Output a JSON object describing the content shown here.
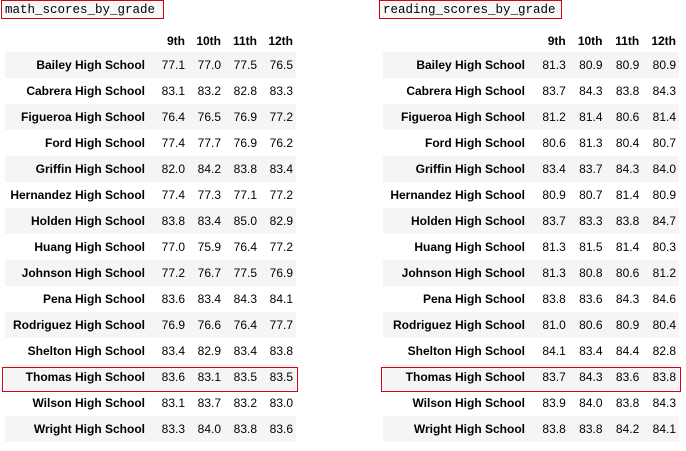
{
  "math": {
    "title": "math_scores_by_grade",
    "columns": [
      "",
      "9th",
      "10th",
      "11th",
      "12th"
    ],
    "rows": [
      {
        "school": "Bailey High School",
        "v": [
          "77.1",
          "77.0",
          "77.5",
          "76.5"
        ]
      },
      {
        "school": "Cabrera High School",
        "v": [
          "83.1",
          "83.2",
          "82.8",
          "83.3"
        ]
      },
      {
        "school": "Figueroa High School",
        "v": [
          "76.4",
          "76.5",
          "76.9",
          "77.2"
        ]
      },
      {
        "school": "Ford High School",
        "v": [
          "77.4",
          "77.7",
          "76.9",
          "76.2"
        ]
      },
      {
        "school": "Griffin High School",
        "v": [
          "82.0",
          "84.2",
          "83.8",
          "83.4"
        ]
      },
      {
        "school": "Hernandez High School",
        "v": [
          "77.4",
          "77.3",
          "77.1",
          "77.2"
        ]
      },
      {
        "school": "Holden High School",
        "v": [
          "83.8",
          "83.4",
          "85.0",
          "82.9"
        ]
      },
      {
        "school": "Huang High School",
        "v": [
          "77.0",
          "75.9",
          "76.4",
          "77.2"
        ]
      },
      {
        "school": "Johnson High School",
        "v": [
          "77.2",
          "76.7",
          "77.5",
          "76.9"
        ]
      },
      {
        "school": "Pena High School",
        "v": [
          "83.6",
          "83.4",
          "84.3",
          "84.1"
        ]
      },
      {
        "school": "Rodriguez High School",
        "v": [
          "76.9",
          "76.6",
          "76.4",
          "77.7"
        ]
      },
      {
        "school": "Shelton High School",
        "v": [
          "83.4",
          "82.9",
          "83.4",
          "83.8"
        ]
      },
      {
        "school": "Thomas High School",
        "v": [
          "83.6",
          "83.1",
          "83.5",
          "83.5"
        ]
      },
      {
        "school": "Wilson High School",
        "v": [
          "83.1",
          "83.7",
          "83.2",
          "83.0"
        ]
      },
      {
        "school": "Wright High School",
        "v": [
          "83.3",
          "84.0",
          "83.8",
          "83.6"
        ]
      }
    ]
  },
  "reading": {
    "title": "reading_scores_by_grade",
    "columns": [
      "",
      "9th",
      "10th",
      "11th",
      "12th"
    ],
    "rows": [
      {
        "school": "Bailey High School",
        "v": [
          "81.3",
          "80.9",
          "80.9",
          "80.9"
        ]
      },
      {
        "school": "Cabrera High School",
        "v": [
          "83.7",
          "84.3",
          "83.8",
          "84.3"
        ]
      },
      {
        "school": "Figueroa High School",
        "v": [
          "81.2",
          "81.4",
          "80.6",
          "81.4"
        ]
      },
      {
        "school": "Ford High School",
        "v": [
          "80.6",
          "81.3",
          "80.4",
          "80.7"
        ]
      },
      {
        "school": "Griffin High School",
        "v": [
          "83.4",
          "83.7",
          "84.3",
          "84.0"
        ]
      },
      {
        "school": "Hernandez High School",
        "v": [
          "80.9",
          "80.7",
          "81.4",
          "80.9"
        ]
      },
      {
        "school": "Holden High School",
        "v": [
          "83.7",
          "83.3",
          "83.8",
          "84.7"
        ]
      },
      {
        "school": "Huang High School",
        "v": [
          "81.3",
          "81.5",
          "81.4",
          "80.3"
        ]
      },
      {
        "school": "Johnson High School",
        "v": [
          "81.3",
          "80.8",
          "80.6",
          "81.2"
        ]
      },
      {
        "school": "Pena High School",
        "v": [
          "83.8",
          "83.6",
          "84.3",
          "84.6"
        ]
      },
      {
        "school": "Rodriguez High School",
        "v": [
          "81.0",
          "80.6",
          "80.9",
          "80.4"
        ]
      },
      {
        "school": "Shelton High School",
        "v": [
          "84.1",
          "83.4",
          "84.4",
          "82.8"
        ]
      },
      {
        "school": "Thomas High School",
        "v": [
          "83.7",
          "84.3",
          "83.6",
          "83.8"
        ]
      },
      {
        "school": "Wilson High School",
        "v": [
          "83.9",
          "84.0",
          "83.8",
          "84.3"
        ]
      },
      {
        "school": "Wright High School",
        "v": [
          "83.8",
          "83.8",
          "84.2",
          "84.1"
        ]
      }
    ]
  },
  "highlight_color": "#d0021b"
}
